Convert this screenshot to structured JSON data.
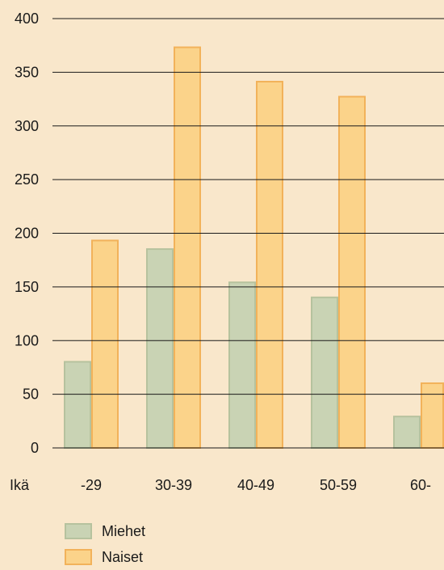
{
  "chart_data": {
    "type": "bar",
    "categories": [
      "-29",
      "30-39",
      "40-49",
      "50-59",
      "60-"
    ],
    "x_axis_prefix": "Ikä",
    "series": [
      {
        "name": "Miehet",
        "values": [
          81,
          186,
          155,
          141,
          30
        ]
      },
      {
        "name": "Naiset",
        "values": [
          194,
          374,
          342,
          328,
          61
        ]
      }
    ],
    "ylim": [
      0,
      400
    ],
    "yticks": [
      0,
      50,
      100,
      150,
      200,
      250,
      300,
      350,
      400
    ],
    "grid": true,
    "legend_placement": "bottom-left",
    "colors": {
      "background": "#f9e7cb",
      "miehet_fill": "#c9d3b4",
      "miehet_edge": "#b6c29e",
      "naiset_fill": "#fbd38a",
      "naiset_edge": "#f2b25a",
      "gridline": "#1a1a1a"
    }
  },
  "legend": {
    "items": [
      {
        "label": "Miehet"
      },
      {
        "label": "Naiset"
      }
    ]
  }
}
